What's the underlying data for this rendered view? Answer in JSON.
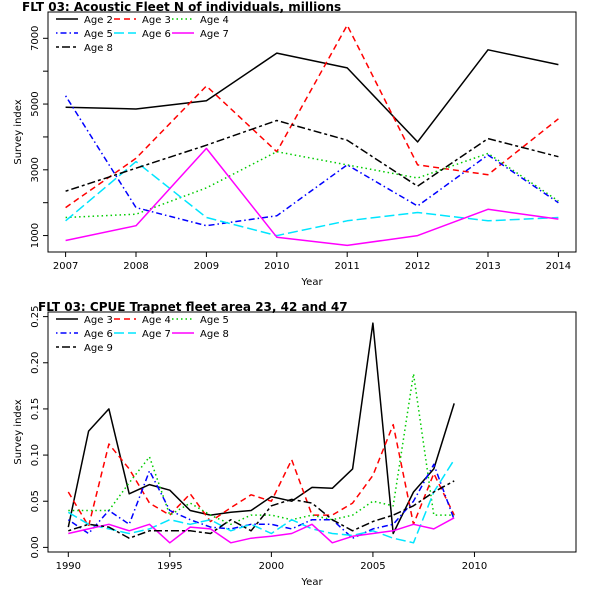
{
  "chart_data": [
    {
      "type": "line",
      "title": "FLT 03: Acoustic Fleet   N of individuals, millions",
      "xlabel": "Year",
      "ylabel": "Survey index",
      "xlim": [
        2006.75,
        2014.25
      ],
      "ylim": [
        500,
        7800
      ],
      "xticks": [
        2007,
        2008,
        2009,
        2010,
        2011,
        2012,
        2013,
        2014
      ],
      "yticks": [
        1000,
        2000,
        3000,
        4000,
        5000,
        6000,
        7000
      ],
      "ytick_labels": [
        "1000",
        "",
        "3000",
        "",
        "5000",
        "",
        "7000"
      ],
      "grid": false,
      "legend": "top-left, 3 columns",
      "x": [
        2007,
        2008,
        2009,
        2010,
        2011,
        2012,
        2013,
        2014
      ],
      "series": [
        {
          "name": "Age 2",
          "color": "#000000",
          "dash": "solid",
          "values": [
            4900,
            4850,
            5100,
            6550,
            6100,
            3850,
            6650,
            6200
          ]
        },
        {
          "name": "Age 3",
          "color": "#ff0000",
          "dash": "dashed",
          "values": [
            1850,
            3350,
            5550,
            3550,
            7400,
            3150,
            2850,
            4550
          ]
        },
        {
          "name": "Age 4",
          "color": "#00cc00",
          "dash": "dotted",
          "values": [
            1550,
            1650,
            2450,
            3550,
            3150,
            2750,
            3500,
            2050
          ]
        },
        {
          "name": "Age 5",
          "color": "#0000ff",
          "dash": "dotdash",
          "values": [
            5250,
            1850,
            1300,
            1600,
            3150,
            1900,
            3450,
            2000
          ]
        },
        {
          "name": "Age 6",
          "color": "#00e5ff",
          "dash": "longdash",
          "values": [
            1450,
            3250,
            1550,
            1000,
            1450,
            1700,
            1450,
            1550
          ]
        },
        {
          "name": "Age 7",
          "color": "#ff00ff",
          "dash": "solid",
          "values": [
            850,
            1300,
            3650,
            950,
            700,
            1000,
            1800,
            1500
          ]
        },
        {
          "name": "Age 8",
          "color": "#000000",
          "dash": "twodash",
          "values": [
            2350,
            3050,
            3750,
            4500,
            3900,
            2500,
            3950,
            3400
          ]
        }
      ]
    },
    {
      "type": "line",
      "title": "FLT 03: CPUE Trapnet fleet area 23, 42 and 47",
      "xlabel": "Year",
      "ylabel": "Survey index",
      "xlim": [
        1989.0,
        2015.0
      ],
      "ylim": [
        -0.005,
        0.255
      ],
      "xticks": [
        1990,
        1995,
        2000,
        2005,
        2010
      ],
      "yticks": [
        0.0,
        0.05,
        0.1,
        0.15,
        0.2,
        0.25
      ],
      "ytick_labels": [
        "0.00",
        "0.05",
        "0.10",
        "0.15",
        "0.20",
        "0.25"
      ],
      "grid": false,
      "legend": "top-left, 3 columns",
      "x": [
        1990,
        1991,
        1992,
        1993,
        1994,
        1995,
        1996,
        1997,
        1998,
        1999,
        2000,
        2001,
        2002,
        2003,
        2004,
        2005,
        2006,
        2007,
        2008,
        2009
      ],
      "series": [
        {
          "name": "Age 3",
          "color": "#000000",
          "dash": "solid",
          "values": [
            0.022,
            0.126,
            0.15,
            0.058,
            0.068,
            0.062,
            0.04,
            0.035,
            0.038,
            0.04,
            0.055,
            0.05,
            0.065,
            0.064,
            0.085,
            0.243,
            0.015,
            0.06,
            0.085,
            0.156
          ]
        },
        {
          "name": "Age 4",
          "color": "#ff0000",
          "dash": "dashed",
          "values": [
            0.06,
            0.023,
            0.112,
            0.085,
            0.048,
            0.035,
            0.058,
            0.028,
            0.043,
            0.057,
            0.05,
            0.095,
            0.035,
            0.035,
            0.048,
            0.078,
            0.133,
            0.025,
            0.08,
            0.035
          ]
        },
        {
          "name": "Age 5",
          "color": "#00cc00",
          "dash": "dotted",
          "values": [
            0.04,
            0.04,
            0.04,
            0.07,
            0.098,
            0.035,
            0.048,
            0.035,
            0.025,
            0.035,
            0.035,
            0.03,
            0.035,
            0.03,
            0.035,
            0.05,
            0.045,
            0.188,
            0.035,
            0.035
          ]
        },
        {
          "name": "Age 6",
          "color": "#0000ff",
          "dash": "dotdash",
          "values": [
            0.03,
            0.015,
            0.04,
            0.025,
            0.083,
            0.04,
            0.03,
            0.022,
            0.02,
            0.025,
            0.025,
            0.02,
            0.03,
            0.03,
            0.01,
            0.02,
            0.025,
            0.05,
            0.09,
            0.03
          ]
        },
        {
          "name": "Age 7",
          "color": "#00e5ff",
          "dash": "longdash",
          "values": [
            0.038,
            0.025,
            0.02,
            0.015,
            0.02,
            0.03,
            0.025,
            0.03,
            0.018,
            0.025,
            0.015,
            0.03,
            0.02,
            0.015,
            0.013,
            0.018,
            0.01,
            0.005,
            0.06,
            0.095
          ]
        },
        {
          "name": "Age 8",
          "color": "#ff00ff",
          "dash": "solid",
          "values": [
            0.015,
            0.02,
            0.025,
            0.018,
            0.025,
            0.005,
            0.022,
            0.02,
            0.005,
            0.01,
            0.012,
            0.015,
            0.025,
            0.005,
            0.012,
            0.015,
            0.018,
            0.025,
            0.02,
            0.032
          ]
        },
        {
          "name": "Age 9",
          "color": "#000000",
          "dash": "twodash",
          "values": [
            0.018,
            0.025,
            0.022,
            0.01,
            0.018,
            0.018,
            0.018,
            0.015,
            0.03,
            0.018,
            0.045,
            0.052,
            0.048,
            0.03,
            0.018,
            0.028,
            0.035,
            0.045,
            0.06,
            0.072
          ]
        }
      ]
    }
  ]
}
